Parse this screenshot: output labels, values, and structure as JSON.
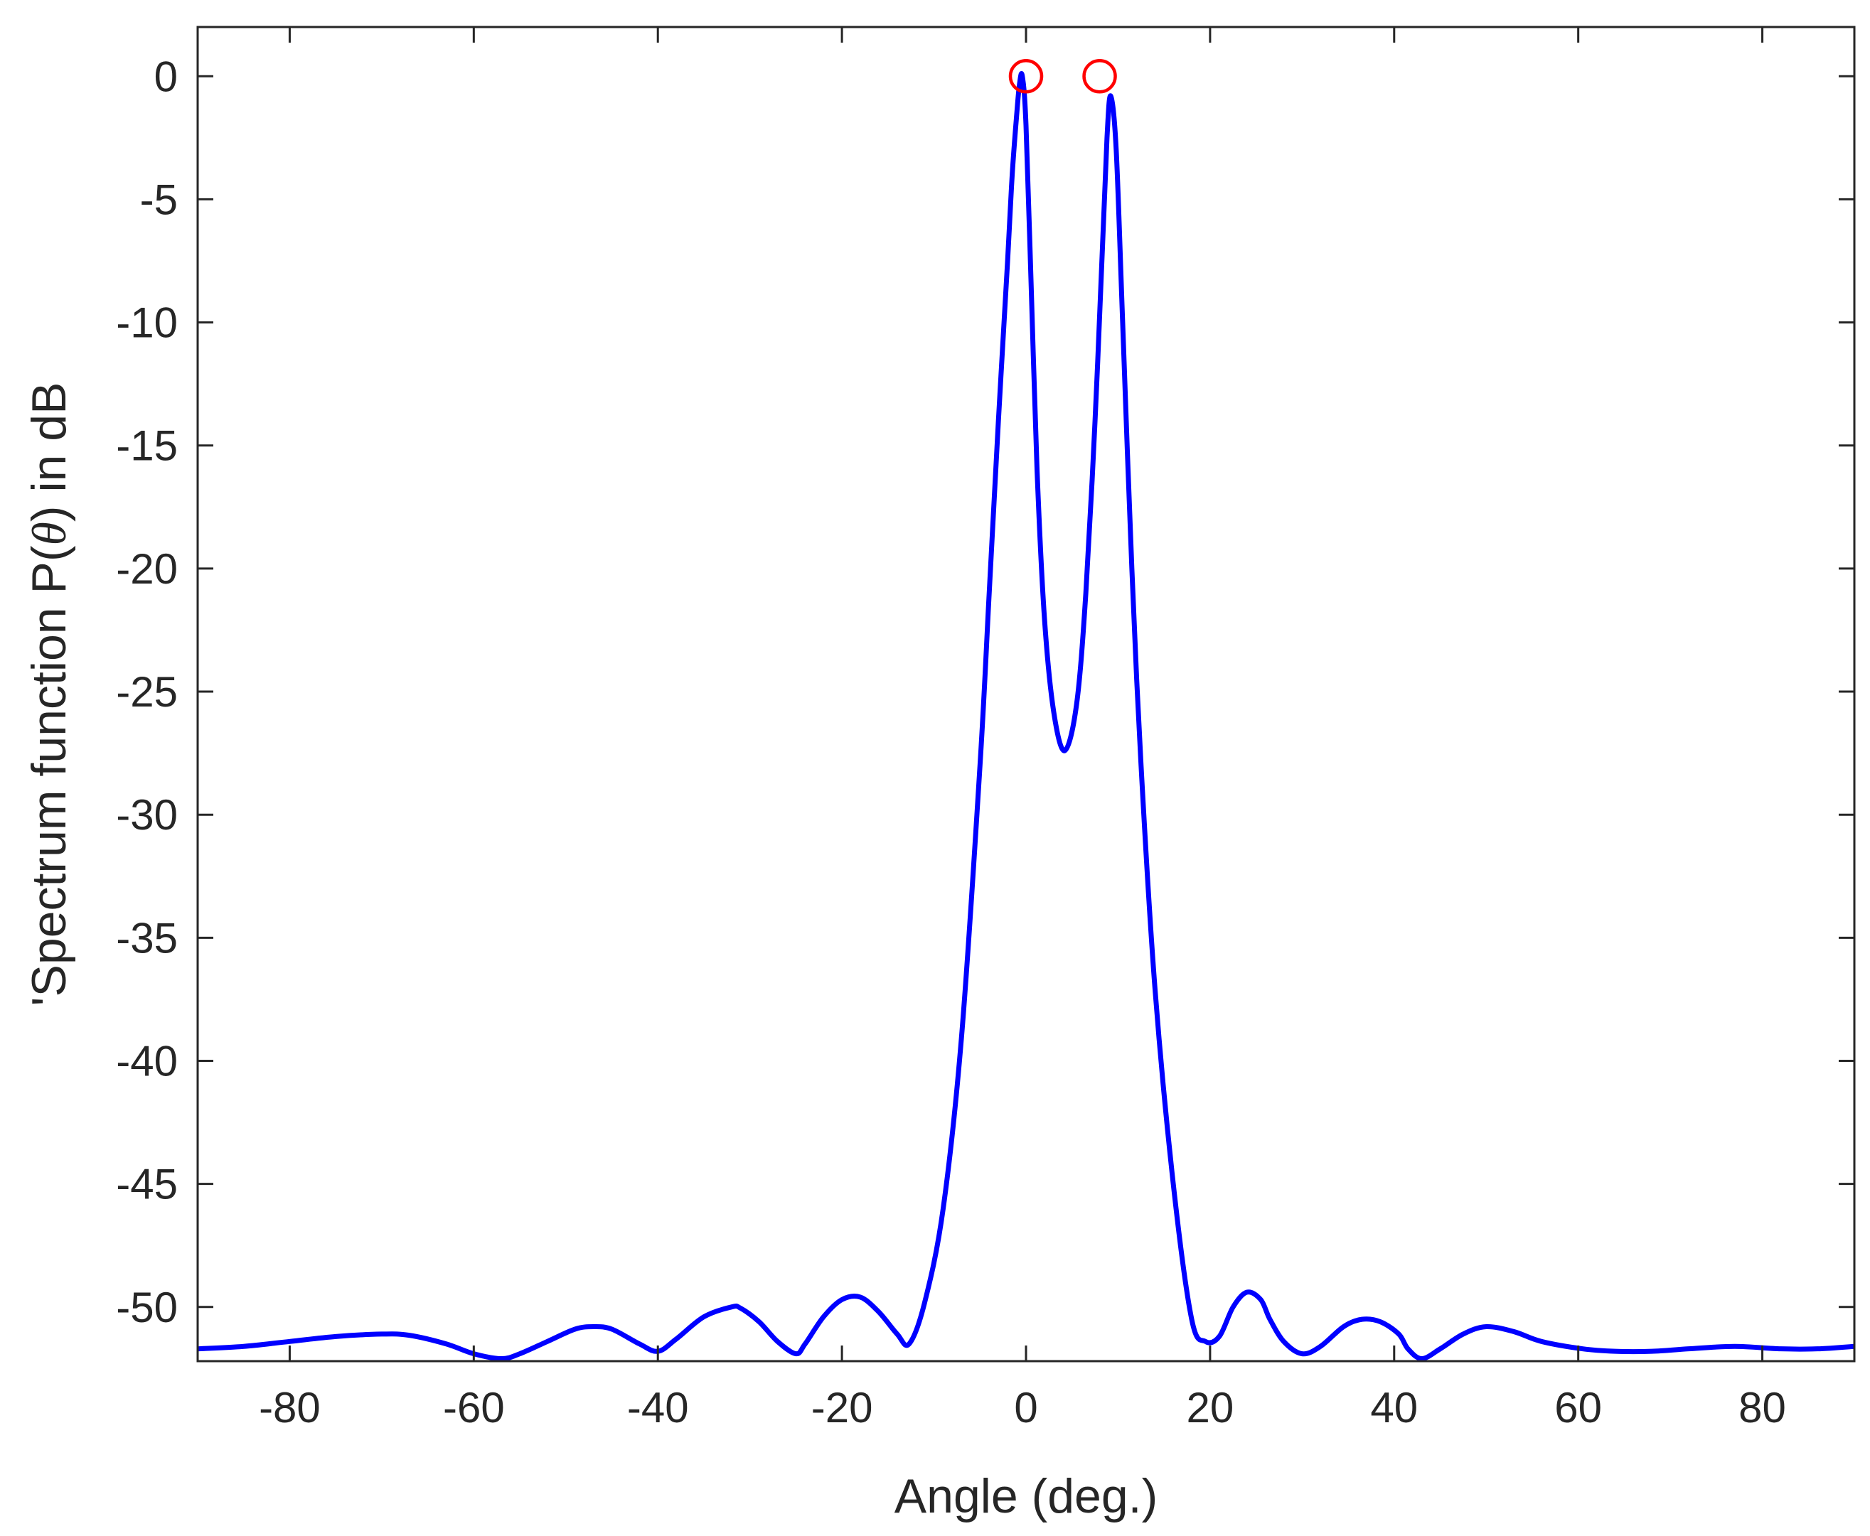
{
  "chart_data": {
    "type": "line",
    "title": "",
    "xlabel": "Angle (deg.)",
    "ylabel_parts": [
      "'Spectrum function P(",
      "θ",
      ") in  dB"
    ],
    "xlim": [
      -90,
      90
    ],
    "ylim": [
      -52.2,
      2
    ],
    "xticks": [
      -80,
      -60,
      -40,
      -20,
      0,
      20,
      40,
      60,
      80
    ],
    "xtick_labels": [
      "-80",
      "-60",
      "-40",
      "-20",
      "0",
      "20",
      "40",
      "60",
      "80"
    ],
    "yticks": [
      0,
      -5,
      -10,
      -15,
      -20,
      -25,
      -30,
      -35,
      -40,
      -45,
      -50
    ],
    "ytick_labels": [
      "0",
      "-5",
      "-10",
      "-15",
      "-20",
      "-25",
      "-30",
      "-35",
      "-40",
      "-45",
      "-50"
    ],
    "grid": false,
    "box": true,
    "series": [
      {
        "color": "#0000ff",
        "x": [
          -90,
          -85,
          -80,
          -75,
          -70,
          -67,
          -63,
          -60,
          -57,
          -55,
          -52,
          -49,
          -47,
          -45,
          -42,
          -40,
          -38,
          -35,
          -32,
          -31,
          -29,
          -27,
          -25,
          -24,
          -22,
          -20,
          -18,
          -16,
          -14,
          -12.7,
          -11,
          -9,
          -7,
          -5,
          -4,
          -3,
          -2,
          -1.5,
          -1,
          -0.7,
          -0.4,
          0,
          0.6,
          1.2,
          2,
          3,
          4.2,
          5.5,
          6.5,
          7.5,
          8.3,
          8.8,
          9.2,
          9.8,
          10.5,
          11.5,
          12.5,
          14,
          16,
          18,
          19.5,
          21,
          22.5,
          24,
          25.5,
          26.5,
          28,
          30,
          32,
          34.5,
          36.5,
          38.5,
          40.5,
          41.5,
          43,
          45,
          47.5,
          50,
          53,
          56,
          60.5,
          64,
          68,
          72,
          77,
          82,
          86,
          90
        ],
        "y": [
          -51.7,
          -51.6,
          -51.4,
          -51.2,
          -51.1,
          -51.15,
          -51.5,
          -51.9,
          -52.1,
          -51.9,
          -51.4,
          -50.9,
          -50.8,
          -50.9,
          -51.5,
          -51.8,
          -51.3,
          -50.4,
          -50.0,
          -50.05,
          -50.6,
          -51.4,
          -51.9,
          -51.5,
          -50.4,
          -49.7,
          -49.6,
          -50.2,
          -51.1,
          -51.5,
          -49.8,
          -46.0,
          -39.0,
          -28.0,
          -21.0,
          -14.0,
          -7.5,
          -4.0,
          -1.5,
          -0.3,
          0,
          -2.0,
          -9.0,
          -16.0,
          -22.0,
          -25.8,
          -27.4,
          -25.5,
          -21.0,
          -14.0,
          -7.0,
          -2.5,
          -0.8,
          -3.0,
          -10.0,
          -20.0,
          -28.0,
          -37.0,
          -45.0,
          -50.5,
          -51.4,
          -51.2,
          -50.0,
          -49.4,
          -49.7,
          -50.5,
          -51.4,
          -51.9,
          -51.6,
          -50.8,
          -50.5,
          -50.6,
          -51.1,
          -51.7,
          -52.1,
          -51.7,
          -51.1,
          -50.8,
          -51.0,
          -51.4,
          -51.7,
          -51.8,
          -51.8,
          -51.7,
          -51.6,
          -51.7,
          -51.7,
          -51.6
        ]
      }
    ],
    "markers": {
      "color": "#ff0000",
      "shape": "circle",
      "points": [
        {
          "x": 0,
          "y": 0
        },
        {
          "x": 8,
          "y": 0
        }
      ]
    }
  }
}
